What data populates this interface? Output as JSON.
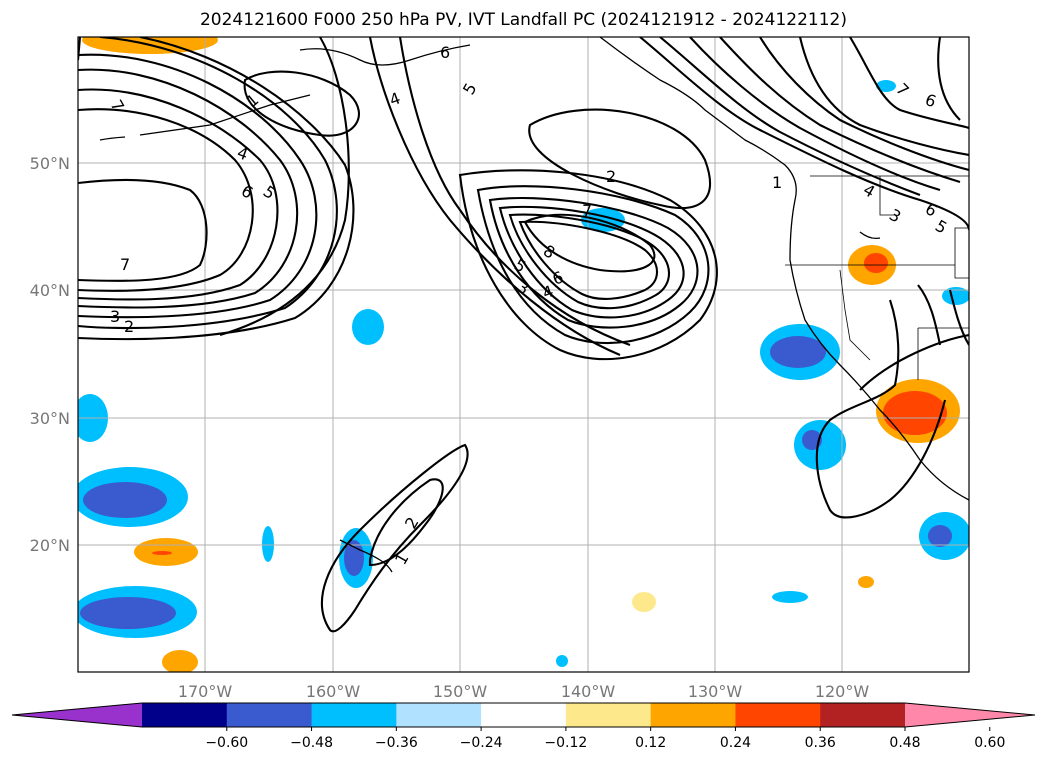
{
  "title": "2024121600 F000 250 hPa PV, IVT Landfall PC (2024121912 - 2024122112)",
  "lon_ticks": [
    "170°W",
    "160°W",
    "150°W",
    "140°W",
    "130°W",
    "120°W"
  ],
  "lat_ticks": [
    "50°N",
    "40°N",
    "30°N",
    "20°N"
  ],
  "colorbar": {
    "colors": [
      "#9932cc",
      "#00008b",
      "#3a5bd0",
      "#00bfff",
      "#b0e2ff",
      "#ffffff",
      "#fde98c",
      "#ffa500",
      "#ff4500",
      "#b22222",
      "#ff88aa"
    ],
    "tick_labels": [
      "−0.60",
      "−0.48",
      "−0.36",
      "−0.24",
      "−0.12",
      "0.12",
      "0.24",
      "0.36",
      "0.48",
      "0.60"
    ]
  },
  "contour_labels": [
    "7",
    "1",
    "4",
    "6",
    "5",
    "7",
    "3",
    "2",
    "6",
    "4",
    "5",
    "2",
    "7",
    "8",
    "5",
    "3",
    "4",
    "6",
    "1",
    "4",
    "3",
    "6",
    "5",
    "7",
    "6",
    "1",
    "2"
  ],
  "colors": {
    "land_outline": "#000000",
    "grid": "#b0b0b0",
    "contour": "#000000"
  }
}
